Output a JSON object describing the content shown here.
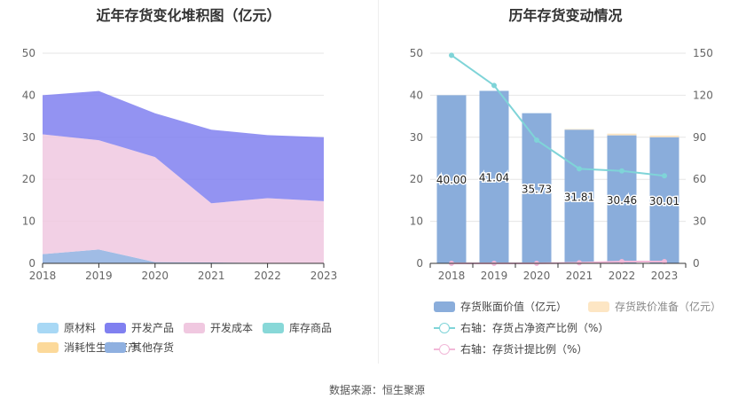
{
  "titles": {
    "left": "近年存货变化堆积图（亿元）",
    "right": "历年存货变动情况"
  },
  "source": "数据来源：恒生聚源",
  "colors": {
    "raw_materials": "#a8d8f5",
    "dev_products": "#8080f0",
    "dev_costs": "#f0c8e0",
    "inventory_goods": "#88d8d8",
    "bio_assets": "#fcd99a",
    "other": "#8fb0e0",
    "bar_book": "#8aaddb",
    "bar_reserve": "#fde6c4",
    "line_ratio": "#7fd4d8",
    "line_provision": "#f2b8d8"
  },
  "chart_data": [
    {
      "type": "area",
      "stacked": true,
      "title": "近年存货变化堆积图（亿元）",
      "x": [
        "2018",
        "2019",
        "2020",
        "2021",
        "2022",
        "2023"
      ],
      "ylim": [
        0,
        50
      ],
      "yticks": [
        "0",
        "10",
        "20",
        "30",
        "40",
        "50"
      ],
      "grid": true,
      "series": [
        {
          "name": "其他存货",
          "key": "other",
          "values": [
            2.2,
            3.3,
            0.3,
            0.2,
            0.1,
            0.1
          ]
        },
        {
          "name": "开发成本",
          "key": "dev_costs",
          "values": [
            28.5,
            26.0,
            25.0,
            14.1,
            15.4,
            14.7
          ]
        },
        {
          "name": "开发产品",
          "key": "dev_products",
          "values": [
            9.3,
            11.7,
            10.4,
            17.5,
            15.0,
            15.2
          ]
        }
      ],
      "legend": [
        {
          "name": "原材料",
          "key": "raw_materials"
        },
        {
          "name": "开发产品",
          "key": "dev_products"
        },
        {
          "name": "开发成本",
          "key": "dev_costs"
        },
        {
          "name": "库存商品",
          "key": "inventory_goods"
        },
        {
          "name": "消耗性生物资产",
          "key": "bio_assets"
        },
        {
          "name": "其他存货",
          "key": "other"
        }
      ],
      "legend_position": "bottom"
    },
    {
      "type": "bar",
      "stacked": true,
      "title": "历年存货变动情况",
      "categories": [
        "2018",
        "2019",
        "2020",
        "2021",
        "2022",
        "2023"
      ],
      "ylim": [
        0,
        50
      ],
      "yticks": [
        "0",
        "10",
        "20",
        "30",
        "40",
        "50"
      ],
      "y2lim": [
        0,
        150
      ],
      "y2ticks": [
        "0",
        "30",
        "60",
        "90",
        "120",
        "150"
      ],
      "grid": true,
      "series": [
        {
          "name": "存货账面价值（亿元）",
          "key": "bar_book",
          "kind": "bar",
          "axis": "left",
          "values": [
            40.0,
            41.04,
            35.73,
            31.81,
            30.46,
            30.01
          ],
          "labels": [
            "40.00",
            "41.04",
            "35.73",
            "31.81",
            "30.46",
            "30.01"
          ]
        },
        {
          "name": "存货跌价准备（亿元）",
          "key": "bar_reserve",
          "kind": "bar",
          "axis": "left",
          "values": [
            0.0,
            0.0,
            0.0,
            0.15,
            0.4,
            0.4
          ]
        },
        {
          "name": "右轴：存货占净资产比例（%）",
          "key": "line_ratio",
          "kind": "line",
          "axis": "right",
          "values": [
            148.5,
            127.0,
            88.0,
            67.5,
            66.0,
            62.5
          ]
        },
        {
          "name": "右轴：存货计提比例（%）",
          "key": "line_provision",
          "kind": "line",
          "axis": "right",
          "values": [
            0.0,
            0.0,
            0.0,
            0.4,
            1.3,
            1.3
          ]
        }
      ],
      "legend_position": "bottom"
    }
  ]
}
